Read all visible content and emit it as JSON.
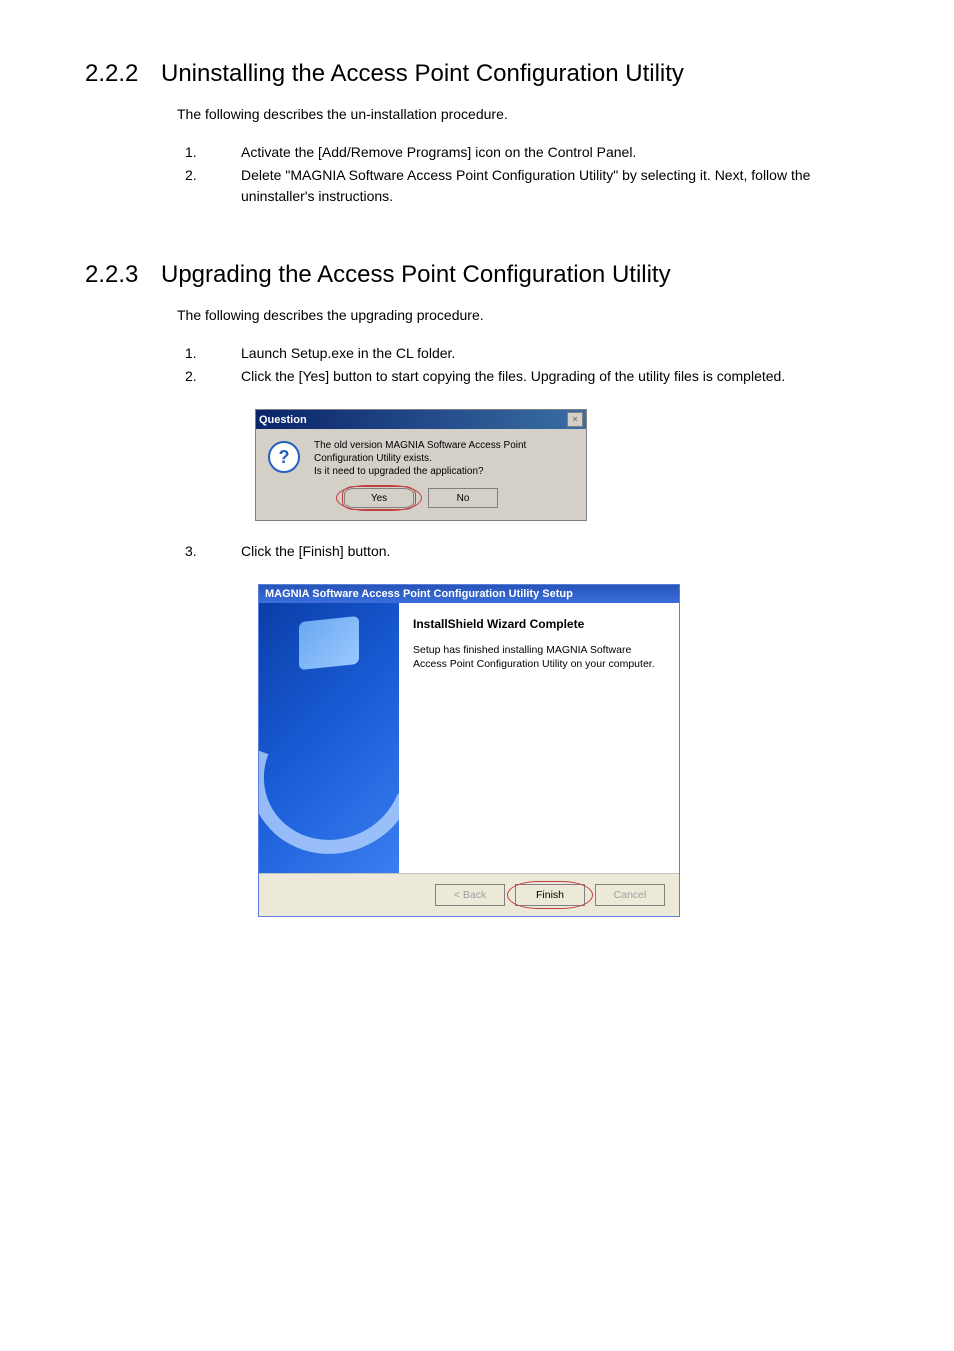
{
  "section1": {
    "number": "2.2.2",
    "title": "Uninstalling the Access Point Configuration Utility",
    "intro": "The following describes the un-installation procedure.",
    "steps": [
      {
        "n": "1.",
        "text": "Activate the [Add/Remove Programs] icon on the Control Panel."
      },
      {
        "n": "2.",
        "text": "Delete \"MAGNIA Software Access Point Configuration Utility\" by selecting it. Next, follow the uninstaller's instructions."
      }
    ]
  },
  "section2": {
    "number": "2.2.3",
    "title": "Upgrading the Access Point Configuration Utility",
    "intro": "The following describes the upgrading procedure.",
    "steps_a": [
      {
        "n": "1.",
        "text": "Launch Setup.exe in the CL folder."
      },
      {
        "n": "2.",
        "text": "Click the [Yes] button to start copying the files. Upgrading of the utility files is completed."
      }
    ],
    "steps_b": [
      {
        "n": "3.",
        "text": "Click the [Finish] button."
      }
    ]
  },
  "question_dialog": {
    "title": "Question",
    "message_line1": "The old version MAGNIA Software Access Point Configuration Utility exists.",
    "message_line2": "Is it need to upgraded the application?",
    "yes_label": "Yes",
    "no_label": "No",
    "icon_glyph": "?",
    "titlebar_color": "#0a246a",
    "background_color": "#d4d0c8"
  },
  "setup_dialog": {
    "title": "MAGNIA Software Access Point Configuration Utility Setup",
    "heading": "InstallShield Wizard Complete",
    "description": "Setup has finished installing MAGNIA Software Access Point Configuration Utility on your computer.",
    "back_label": "< Back",
    "finish_label": "Finish",
    "cancel_label": "Cancel",
    "titlebar_color": "#2754b8",
    "side_color": "#1a5dd8",
    "footer_color": "#ece9d8"
  },
  "colors": {
    "text": "#000000",
    "background": "#ffffff",
    "highlight": "#c04040"
  },
  "typography": {
    "heading_fontsize": 24,
    "body_fontsize": 14,
    "dialog_fontsize": 10
  }
}
